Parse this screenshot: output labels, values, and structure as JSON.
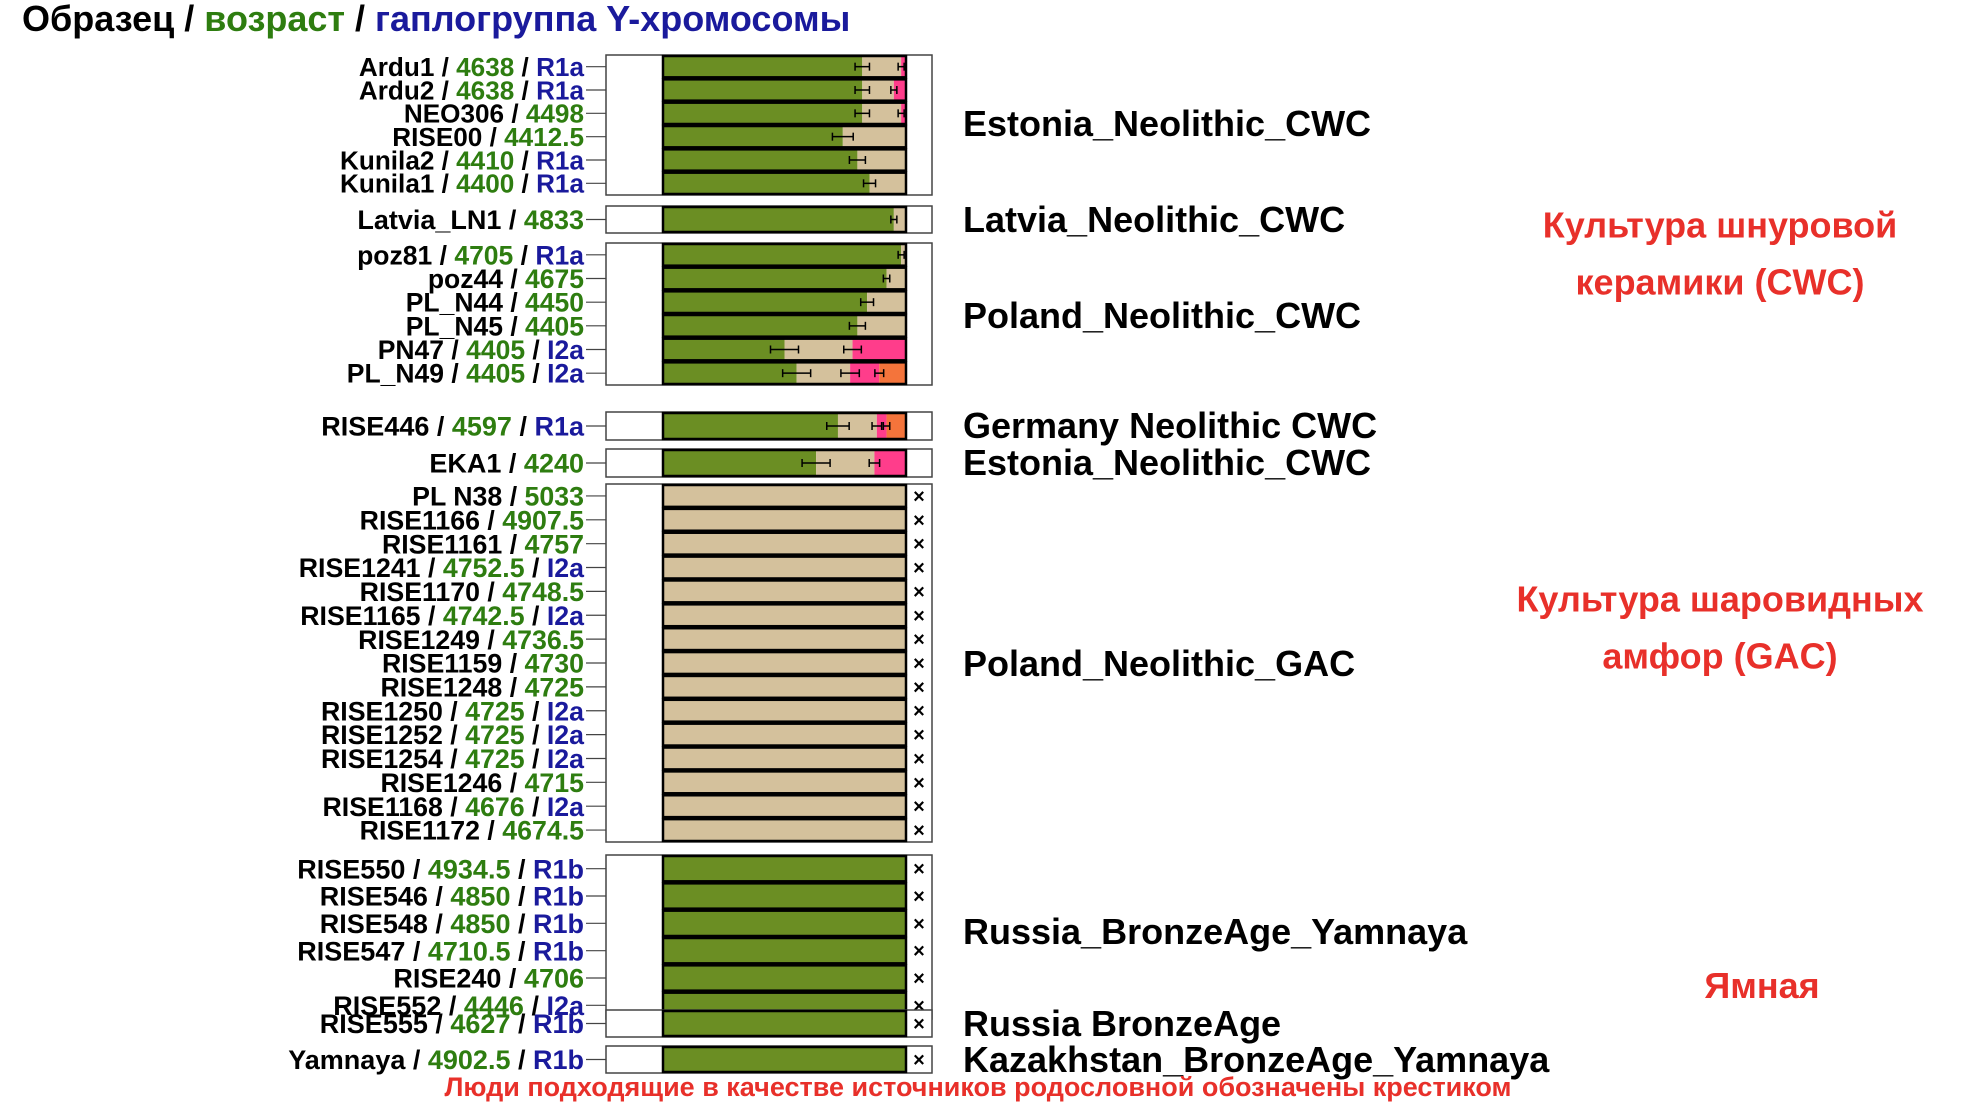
{
  "title": {
    "part1": "Образец / ",
    "part2": "возраст",
    "part3": " / ",
    "part4": "гаплогруппа Y-хромосомы"
  },
  "colors": {
    "sample": "#000000",
    "age": "#2e7d10",
    "haplo": "#1a1a9c",
    "culture": "#e8302a",
    "green": "#6b8e23",
    "tan": "#d4c19c",
    "pink": "#ff3d8b",
    "orange": "#f4743b",
    "magenta": "#ff1493"
  },
  "culture_labels": [
    {
      "lines": [
        "Культура шнуровой",
        "керамики (CWC)"
      ]
    },
    {
      "lines": [
        "Культура шаровидных",
        "амфор (GAC)"
      ]
    },
    {
      "lines": [
        "Ямная"
      ]
    }
  ],
  "footer": "Люди подходящие в качестве источников родословной обозначены крестиком",
  "chart_data": {
    "type": "bar",
    "stacked": true,
    "components": [
      "green",
      "tan",
      "pink",
      "orange"
    ],
    "groups": [
      {
        "label": "Estonia_Neolithic_CWC",
        "samples": [
          {
            "name": "Ardu1",
            "age": "4638",
            "haplo": "R1a",
            "values": [
              0.82,
              0.16,
              0.02,
              0
            ],
            "x_mark": false
          },
          {
            "name": "Ardu2",
            "age": "4638",
            "haplo": "R1a",
            "values": [
              0.82,
              0.13,
              0.05,
              0
            ],
            "x_mark": false
          },
          {
            "name": "NEO306",
            "age": "4498",
            "haplo": "",
            "values": [
              0.82,
              0.16,
              0.02,
              0
            ],
            "x_mark": false
          },
          {
            "name": "RISE00",
            "age": "4412.5",
            "haplo": "",
            "values": [
              0.74,
              0.26,
              0,
              0
            ],
            "x_mark": false
          },
          {
            "name": "Kunila2",
            "age": "4410",
            "haplo": "R1a",
            "values": [
              0.8,
              0.2,
              0,
              0
            ],
            "x_mark": false
          },
          {
            "name": "Kunila1",
            "age": "4400",
            "haplo": "R1a",
            "values": [
              0.85,
              0.15,
              0,
              0
            ],
            "x_mark": false
          }
        ]
      },
      {
        "label": "Latvia_Neolithic_CWC",
        "samples": [
          {
            "name": "Latvia_LN1",
            "age": "4833",
            "haplo": "",
            "values": [
              0.95,
              0.05,
              0,
              0
            ],
            "x_mark": false
          }
        ]
      },
      {
        "label": "Poland_Neolithic_CWC",
        "samples": [
          {
            "name": "poz81",
            "age": "4705",
            "haplo": "R1a",
            "values": [
              0.98,
              0.02,
              0,
              0
            ],
            "x_mark": false
          },
          {
            "name": "poz44",
            "age": "4675",
            "haplo": "",
            "values": [
              0.92,
              0.08,
              0,
              0
            ],
            "x_mark": false
          },
          {
            "name": "PL_N44",
            "age": "4450",
            "haplo": "",
            "values": [
              0.84,
              0.16,
              0,
              0
            ],
            "x_mark": false
          },
          {
            "name": "PL_N45",
            "age": "4405",
            "haplo": "",
            "values": [
              0.8,
              0.2,
              0,
              0
            ],
            "x_mark": false
          },
          {
            "name": "PN47",
            "age": "4405",
            "haplo": "I2a",
            "values": [
              0.5,
              0.28,
              0.22,
              0
            ],
            "x_mark": false
          },
          {
            "name": "PL_N49",
            "age": "4405",
            "haplo": "I2a",
            "values": [
              0.55,
              0.22,
              0.12,
              0.11
            ],
            "x_mark": false
          }
        ]
      },
      {
        "label": "Germany Neolithic CWC",
        "samples": [
          {
            "name": "RISE446",
            "age": "4597",
            "haplo": "R1a",
            "values": [
              0.72,
              0.16,
              0.04,
              0.08
            ],
            "x_mark": false
          }
        ]
      },
      {
        "label": "Estonia_Neolithic_CWC",
        "samples": [
          {
            "name": "EKA1",
            "age": "4240",
            "haplo": "",
            "values": [
              0.63,
              0.24,
              0.13,
              0
            ],
            "x_mark": false
          }
        ]
      },
      {
        "label": "Poland_Neolithic_GAC",
        "samples": [
          {
            "name": "PL N38",
            "age": "5033",
            "haplo": "",
            "values": [
              0,
              1,
              0,
              0
            ],
            "x_mark": true
          },
          {
            "name": "RISE1166",
            "age": "4907.5",
            "haplo": "",
            "values": [
              0,
              1,
              0,
              0
            ],
            "x_mark": true
          },
          {
            "name": "RISE1161",
            "age": "4757",
            "haplo": "",
            "values": [
              0,
              1,
              0,
              0
            ],
            "x_mark": true
          },
          {
            "name": "RISE1241",
            "age": "4752.5",
            "haplo": "I2a",
            "values": [
              0,
              1,
              0,
              0
            ],
            "x_mark": true
          },
          {
            "name": "RISE1170",
            "age": "4748.5",
            "haplo": "",
            "values": [
              0,
              1,
              0,
              0
            ],
            "x_mark": true
          },
          {
            "name": "RISE1165",
            "age": "4742.5",
            "haplo": "I2a",
            "values": [
              0,
              1,
              0,
              0
            ],
            "x_mark": true
          },
          {
            "name": "RISE1249",
            "age": "4736.5",
            "haplo": "",
            "values": [
              0,
              1,
              0,
              0
            ],
            "x_mark": true
          },
          {
            "name": "RISE1159",
            "age": "4730",
            "haplo": "",
            "values": [
              0,
              1,
              0,
              0
            ],
            "x_mark": true
          },
          {
            "name": "RISE1248",
            "age": "4725",
            "haplo": "",
            "values": [
              0,
              1,
              0,
              0
            ],
            "x_mark": true
          },
          {
            "name": "RISE1250",
            "age": "4725",
            "haplo": "I2a",
            "values": [
              0,
              1,
              0,
              0
            ],
            "x_mark": true
          },
          {
            "name": "RISE1252",
            "age": "4725",
            "haplo": "I2a",
            "values": [
              0,
              1,
              0,
              0
            ],
            "x_mark": true
          },
          {
            "name": "RISE1254",
            "age": "4725",
            "haplo": "I2a",
            "values": [
              0,
              1,
              0,
              0
            ],
            "x_mark": true
          },
          {
            "name": "RISE1246",
            "age": "4715",
            "haplo": "",
            "values": [
              0,
              1,
              0,
              0
            ],
            "x_mark": true
          },
          {
            "name": "RISE1168",
            "age": "4676",
            "haplo": "I2a",
            "values": [
              0,
              1,
              0,
              0
            ],
            "x_mark": true
          },
          {
            "name": "RISE1172",
            "age": "4674.5",
            "haplo": "",
            "values": [
              0,
              1,
              0,
              0
            ],
            "x_mark": true
          }
        ]
      },
      {
        "label": "Russia_BronzeAge_Yamnaya",
        "samples": [
          {
            "name": "RISE550",
            "age": "4934.5",
            "haplo": "R1b",
            "values": [
              1,
              0,
              0,
              0
            ],
            "x_mark": true
          },
          {
            "name": "RISE546",
            "age": "4850",
            "haplo": "R1b",
            "values": [
              1,
              0,
              0,
              0
            ],
            "x_mark": true
          },
          {
            "name": "RISE548",
            "age": "4850",
            "haplo": "R1b",
            "values": [
              1,
              0,
              0,
              0
            ],
            "x_mark": true
          },
          {
            "name": "RISE547",
            "age": "4710.5",
            "haplo": "R1b",
            "values": [
              1,
              0,
              0,
              0
            ],
            "x_mark": true
          },
          {
            "name": "RISE240",
            "age": "4706",
            "haplo": "",
            "values": [
              1,
              0,
              0,
              0
            ],
            "x_mark": true
          },
          {
            "name": "RISE552",
            "age": "4446",
            "haplo": "I2a",
            "values": [
              1,
              0,
              0,
              0
            ],
            "x_mark": true
          }
        ]
      },
      {
        "label": "Russia BronzeAge",
        "samples": [
          {
            "name": "RISE555",
            "age": "4627",
            "haplo": "R1b",
            "values": [
              1,
              0,
              0,
              0
            ],
            "x_mark": true
          }
        ]
      },
      {
        "label": "Kazakhstan_BronzeAge_Yamnaya",
        "samples": [
          {
            "name": "Yamnaya",
            "age": "4902.5",
            "haplo": "R1b",
            "values": [
              1,
              0,
              0,
              0
            ],
            "x_mark": true
          }
        ]
      }
    ]
  }
}
